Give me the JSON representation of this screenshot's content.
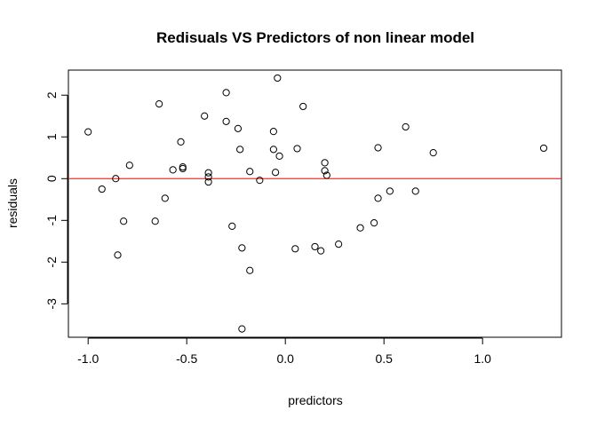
{
  "chart_data": {
    "type": "scatter",
    "title": "Redisuals VS Predictors of non linear model",
    "xlabel": "predictors",
    "ylabel": "residuals",
    "xlim": [
      -1.1,
      1.4
    ],
    "ylim": [
      -3.8,
      2.6
    ],
    "x_ticks": [
      -1.0,
      -0.5,
      0.0,
      0.5,
      1.0
    ],
    "x_tick_labels": [
      "-1.0",
      "-0.5",
      "0.0",
      "0.5",
      "1.0"
    ],
    "y_ticks": [
      -3,
      -2,
      -1,
      0,
      1,
      2
    ],
    "y_tick_labels": [
      "-3",
      "-2",
      "-1",
      "0",
      "1",
      "2"
    ],
    "grid": false,
    "reference_line": {
      "y": 0,
      "color": "#ff0000"
    },
    "point_color": "#000000",
    "points": [
      {
        "x": -1.0,
        "y": 1.12
      },
      {
        "x": -0.93,
        "y": -0.25
      },
      {
        "x": -0.86,
        "y": 0.0
      },
      {
        "x": -0.85,
        "y": -1.83
      },
      {
        "x": -0.82,
        "y": -1.02
      },
      {
        "x": -0.79,
        "y": 0.32
      },
      {
        "x": -0.66,
        "y": -1.02
      },
      {
        "x": -0.64,
        "y": 1.79
      },
      {
        "x": -0.61,
        "y": -0.47
      },
      {
        "x": -0.57,
        "y": 0.21
      },
      {
        "x": -0.53,
        "y": 0.88
      },
      {
        "x": -0.52,
        "y": 0.28
      },
      {
        "x": -0.52,
        "y": 0.24
      },
      {
        "x": -0.41,
        "y": 1.5
      },
      {
        "x": -0.39,
        "y": 0.14
      },
      {
        "x": -0.39,
        "y": 0.04
      },
      {
        "x": -0.39,
        "y": -0.08
      },
      {
        "x": -0.3,
        "y": 2.06
      },
      {
        "x": -0.3,
        "y": 1.37
      },
      {
        "x": -0.27,
        "y": -1.14
      },
      {
        "x": -0.24,
        "y": 1.2
      },
      {
        "x": -0.23,
        "y": 0.7
      },
      {
        "x": -0.22,
        "y": -1.66
      },
      {
        "x": -0.22,
        "y": -3.6
      },
      {
        "x": -0.18,
        "y": -2.2
      },
      {
        "x": -0.18,
        "y": 0.17
      },
      {
        "x": -0.13,
        "y": -0.04
      },
      {
        "x": -0.06,
        "y": 1.13
      },
      {
        "x": -0.06,
        "y": 0.7
      },
      {
        "x": -0.05,
        "y": 0.15
      },
      {
        "x": -0.04,
        "y": 2.41
      },
      {
        "x": -0.03,
        "y": 0.54
      },
      {
        "x": 0.05,
        "y": -1.68
      },
      {
        "x": 0.06,
        "y": 0.72
      },
      {
        "x": 0.09,
        "y": 1.73
      },
      {
        "x": 0.15,
        "y": -1.63
      },
      {
        "x": 0.18,
        "y": -1.73
      },
      {
        "x": 0.2,
        "y": 0.38
      },
      {
        "x": 0.2,
        "y": 0.19
      },
      {
        "x": 0.21,
        "y": 0.08
      },
      {
        "x": 0.27,
        "y": -1.57
      },
      {
        "x": 0.38,
        "y": -1.18
      },
      {
        "x": 0.45,
        "y": -1.06
      },
      {
        "x": 0.47,
        "y": 0.74
      },
      {
        "x": 0.47,
        "y": -0.47
      },
      {
        "x": 0.53,
        "y": -0.3
      },
      {
        "x": 0.61,
        "y": 1.24
      },
      {
        "x": 0.66,
        "y": -0.3
      },
      {
        "x": 0.75,
        "y": 0.62
      },
      {
        "x": 1.31,
        "y": 0.73
      }
    ]
  }
}
